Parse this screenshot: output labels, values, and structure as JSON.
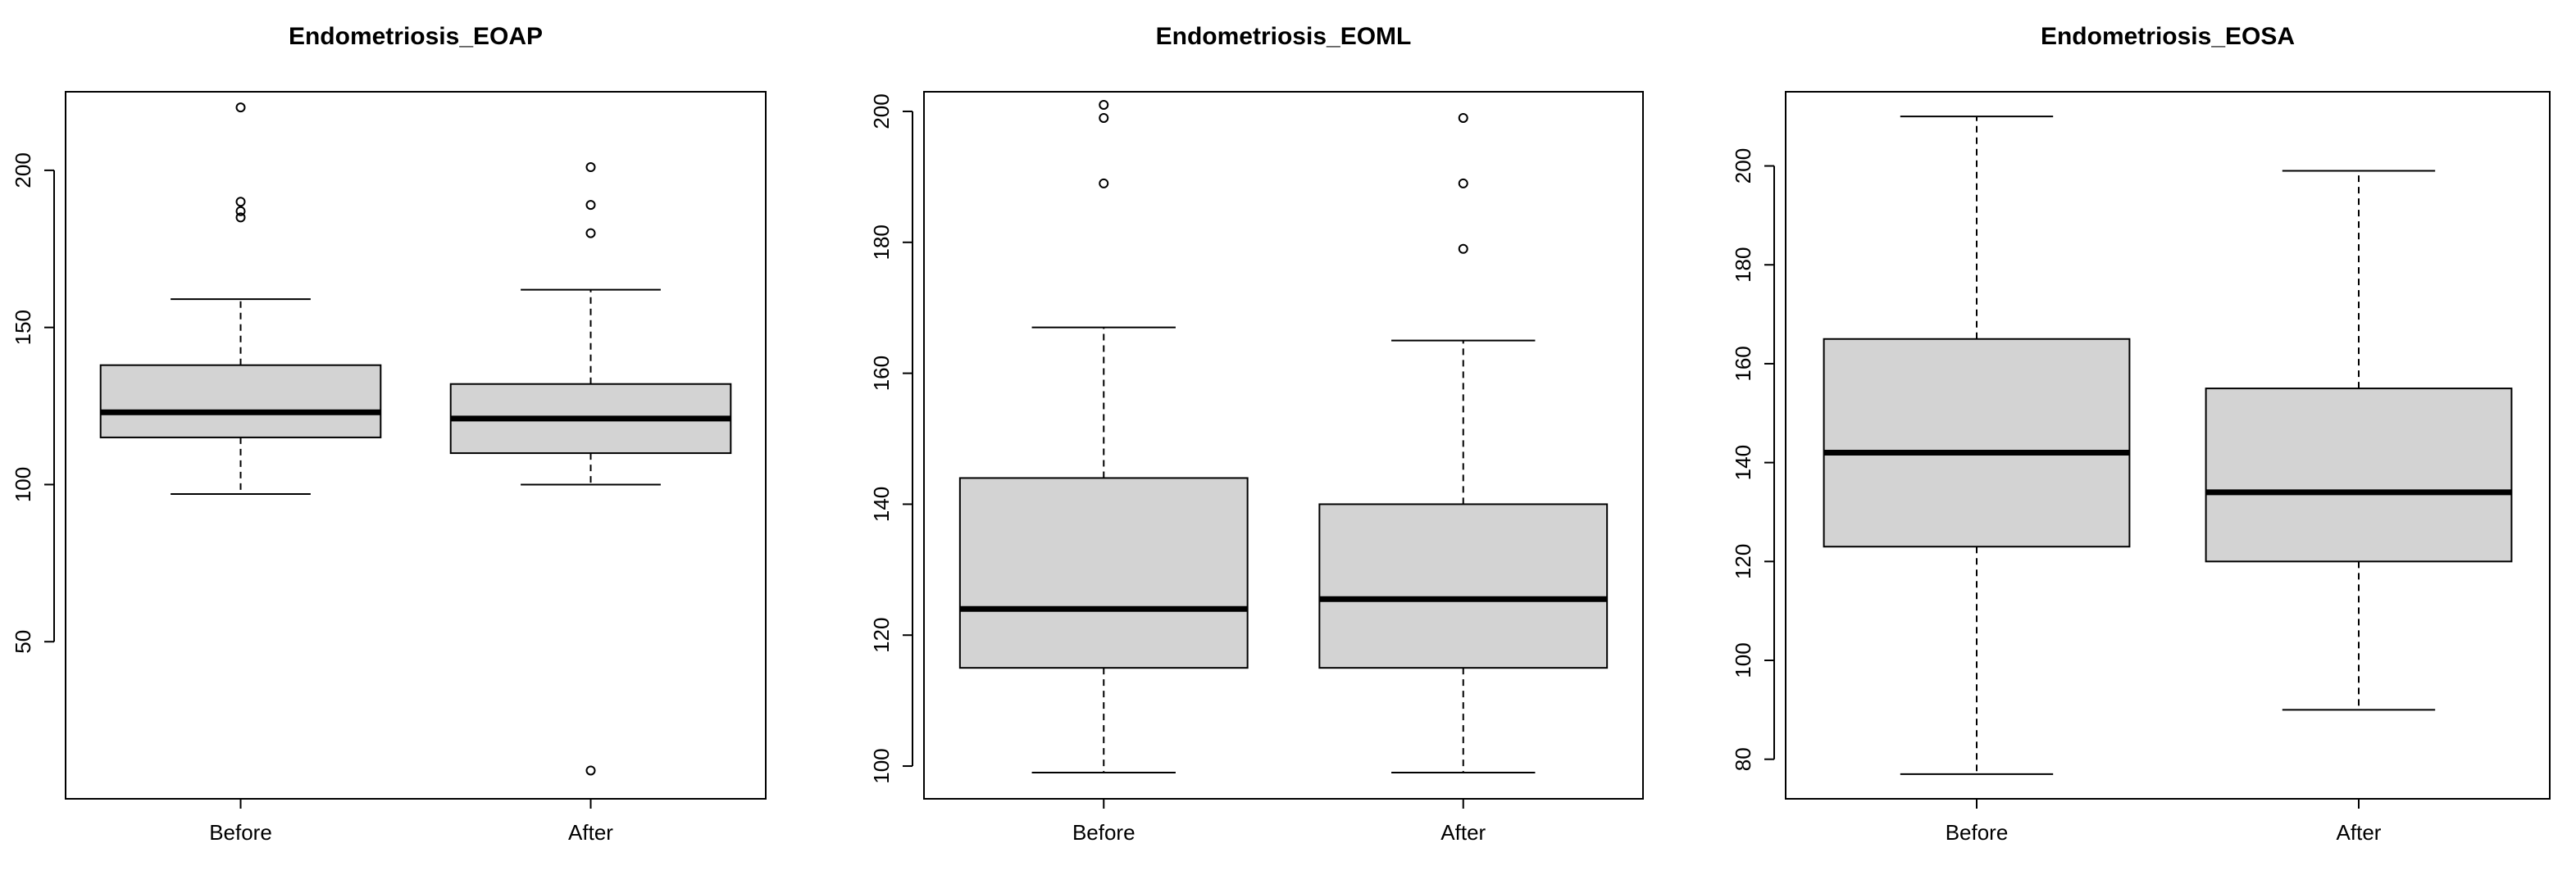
{
  "chart_data": [
    {
      "type": "boxplot",
      "title": "Endometriosis_EOAP",
      "xlabel": "",
      "ylabel": "",
      "categories": [
        "Before",
        "After"
      ],
      "ylim": [
        0,
        225
      ],
      "yticks": [
        50,
        100,
        150,
        200
      ],
      "grid": false,
      "box_color": "#d3d3d3",
      "boxes": [
        {
          "category": "Before",
          "lower_whisker": 97,
          "q1": 115,
          "median": 123,
          "q3": 138,
          "upper_whisker": 159,
          "outliers": [
            185,
            187,
            190,
            220
          ]
        },
        {
          "category": "After",
          "lower_whisker": 100,
          "q1": 110,
          "median": 121,
          "q3": 132,
          "upper_whisker": 162,
          "outliers": [
            180,
            189,
            201,
            9
          ]
        }
      ]
    },
    {
      "type": "boxplot",
      "title": "Endometriosis_EOML",
      "xlabel": "",
      "ylabel": "",
      "categories": [
        "Before",
        "After"
      ],
      "ylim": [
        95,
        203
      ],
      "yticks": [
        100,
        120,
        140,
        160,
        180,
        200
      ],
      "grid": false,
      "box_color": "#d3d3d3",
      "boxes": [
        {
          "category": "Before",
          "lower_whisker": 99,
          "q1": 115,
          "median": 124,
          "q3": 144,
          "upper_whisker": 167,
          "outliers": [
            189,
            199,
            201
          ]
        },
        {
          "category": "After",
          "lower_whisker": 99,
          "q1": 115,
          "median": 125.5,
          "q3": 140,
          "upper_whisker": 165,
          "outliers": [
            179,
            189,
            199
          ]
        }
      ]
    },
    {
      "type": "boxplot",
      "title": "Endometriosis_EOSA",
      "xlabel": "",
      "ylabel": "",
      "categories": [
        "Before",
        "After"
      ],
      "ylim": [
        72,
        215
      ],
      "yticks": [
        80,
        100,
        120,
        140,
        160,
        180,
        200
      ],
      "grid": false,
      "box_color": "#d3d3d3",
      "boxes": [
        {
          "category": "Before",
          "lower_whisker": 77,
          "q1": 123,
          "median": 142,
          "q3": 165,
          "upper_whisker": 210,
          "outliers": []
        },
        {
          "category": "After",
          "lower_whisker": 90,
          "q1": 120,
          "median": 134,
          "q3": 155,
          "upper_whisker": 199,
          "outliers": []
        }
      ]
    }
  ]
}
